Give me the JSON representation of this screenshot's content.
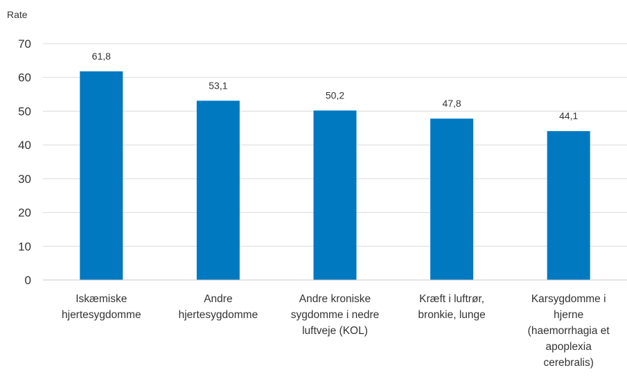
{
  "chart_data": {
    "type": "bar",
    "ylabel": "Rate",
    "ylim": [
      0,
      70
    ],
    "yticks": [
      "0",
      "10",
      "20",
      "30",
      "40",
      "50",
      "60",
      "70"
    ],
    "grid": true,
    "bar_color": "#0079c1",
    "categories": [
      [
        "Iskæmiske",
        "hjertesygdomme"
      ],
      [
        "Andre",
        "hjertesygdomme"
      ],
      [
        "Andre kroniske",
        "sygdomme i nedre",
        "luftveje (KOL)"
      ],
      [
        "Kræft i luftrør,",
        "bronkie, lunge"
      ],
      [
        "Karsygdomme i",
        "hjerne",
        "(haemorrhagia et",
        "apoplexia",
        "cerebralis)"
      ]
    ],
    "values": [
      61.8,
      53.1,
      50.2,
      47.8,
      44.1
    ],
    "value_labels": [
      "61,8",
      "53,1",
      "50,2",
      "47,8",
      "44,1"
    ]
  }
}
